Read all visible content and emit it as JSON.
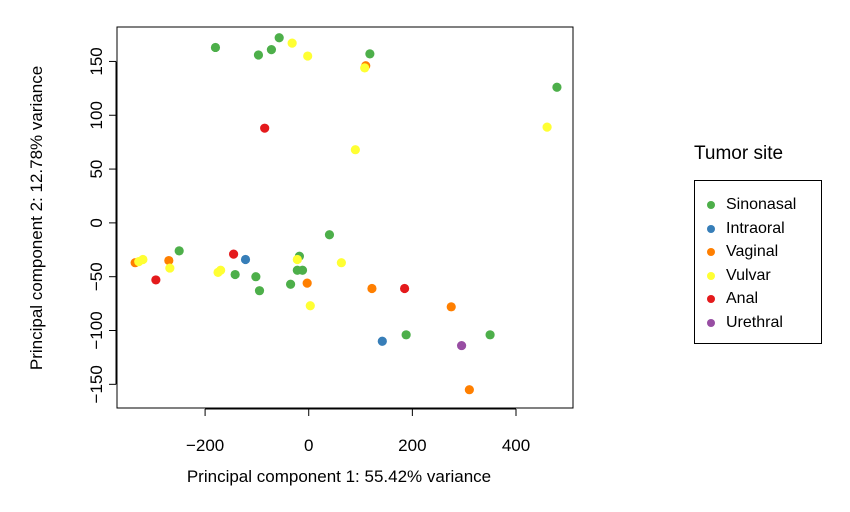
{
  "chart_data": {
    "type": "scatter",
    "title": "",
    "xlabel": "Principal component 1: 55.42% variance",
    "ylabel": "Principal component 2: 12.78% variance",
    "xlim": [
      -370,
      510
    ],
    "ylim": [
      -172,
      182
    ],
    "xticks": [
      -200,
      0,
      200,
      400
    ],
    "xtick_labels": [
      "−200",
      "0",
      "200",
      "400"
    ],
    "yticks": [
      -150,
      -100,
      -50,
      0,
      50,
      100,
      150
    ],
    "ytick_labels": [
      "−150",
      "−100",
      "−50",
      "0",
      "50",
      "100",
      "150"
    ],
    "grid": false,
    "legend": {
      "title": "Tumor site",
      "placement": "right"
    },
    "series": [
      {
        "name": "Sinonasal",
        "color": "#4daf4a",
        "points": [
          [
            -180,
            163
          ],
          [
            -57,
            172
          ],
          [
            -72,
            161
          ],
          [
            -97,
            156
          ],
          [
            118,
            157
          ],
          [
            479,
            126
          ],
          [
            -250,
            -26
          ],
          [
            40,
            -11
          ],
          [
            -18,
            -31
          ],
          [
            -22,
            -44
          ],
          [
            -12,
            -44
          ],
          [
            -35,
            -57
          ],
          [
            -102,
            -50
          ],
          [
            -142,
            -48
          ],
          [
            -95,
            -63
          ],
          [
            188,
            -104
          ],
          [
            350,
            -104
          ]
        ]
      },
      {
        "name": "Intraoral",
        "color": "#377eb8",
        "points": [
          [
            -122,
            -34
          ],
          [
            142,
            -110
          ]
        ]
      },
      {
        "name": "Vaginal",
        "color": "#ff7f00",
        "points": [
          [
            110,
            146
          ],
          [
            -335,
            -37
          ],
          [
            -270,
            -35
          ],
          [
            -3,
            -56
          ],
          [
            122,
            -61
          ],
          [
            275,
            -78
          ],
          [
            310,
            -155
          ]
        ]
      },
      {
        "name": "Vulvar",
        "color": "#ffff33",
        "points": [
          [
            -32,
            167
          ],
          [
            -2,
            155
          ],
          [
            108,
            144
          ],
          [
            460,
            89
          ],
          [
            90,
            68
          ],
          [
            -328,
            -36
          ],
          [
            -320,
            -34
          ],
          [
            -268,
            -42
          ],
          [
            -170,
            -44
          ],
          [
            -175,
            -46
          ],
          [
            -22,
            -34
          ],
          [
            63,
            -37
          ],
          [
            3,
            -77
          ]
        ]
      },
      {
        "name": "Anal",
        "color": "#e41a1c",
        "points": [
          [
            -85,
            88
          ],
          [
            -145,
            -29
          ],
          [
            -295,
            -53
          ],
          [
            185,
            -61
          ]
        ]
      },
      {
        "name": "Urethral",
        "color": "#984ea3",
        "points": [
          [
            295,
            -114
          ]
        ]
      }
    ]
  }
}
